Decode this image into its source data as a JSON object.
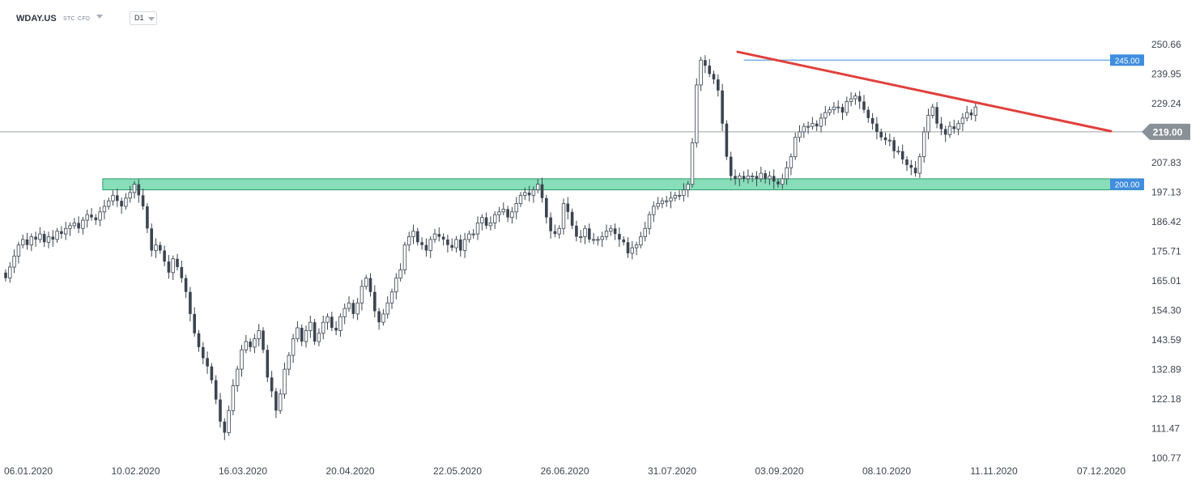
{
  "toolbar": {
    "symbol": "WDAY.US",
    "tag_stc": "STC",
    "tag_cfd": "CFD",
    "timeframe": "D1"
  },
  "colors": {
    "candle": "#3b4450",
    "trendline": "#e0403c",
    "resistance_line": "#3f8de0",
    "support_zone": "#5fd3a1",
    "support_zone_border": "#2a9d68",
    "price_line": "#9aa1a8",
    "price_badge": "#8a9097"
  },
  "chart_data": {
    "type": "candlestick",
    "ylim": [
      100.77,
      250.66
    ],
    "y_ticks": [
      "250.66",
      "239.95",
      "229.24",
      "219.00",
      "207.83",
      "197.13",
      "186.42",
      "175.71",
      "165.01",
      "154.30",
      "143.59",
      "132.89",
      "122.18",
      "111.47",
      "100.77"
    ],
    "x_labels": [
      "06.01.2020",
      "10.02.2020",
      "16.03.2020",
      "20.04.2020",
      "22.05.2020",
      "26.06.2020",
      "31.07.2020",
      "03.09.2020",
      "08.10.2020",
      "11.11.2020",
      "07.12.2020"
    ],
    "x_label_index": [
      0,
      25,
      50,
      75,
      100,
      125,
      150,
      175,
      200,
      225,
      250
    ],
    "current_price": 219.0,
    "current_price_label": "219.00",
    "resistance_label": "245.00",
    "support_label": "200.00",
    "overlays": {
      "resistance": {
        "index": [
          172,
          252
        ],
        "value": 245.0
      },
      "support_zone": {
        "index": [
          23,
          261
        ],
        "range": [
          198.0,
          202.0
        ]
      },
      "trendline": {
        "from": {
          "index": 170,
          "value": 248.0
        },
        "to": {
          "index": 252,
          "value": 221.0
        }
      }
    },
    "close": [
      166,
      170,
      174,
      178,
      180,
      178,
      181,
      180,
      182,
      179,
      181,
      180,
      183,
      182,
      184,
      185,
      186,
      184,
      187,
      189,
      188,
      187,
      190,
      192,
      194,
      196,
      194,
      192,
      195,
      197,
      200,
      196,
      192,
      184,
      176,
      178,
      176,
      172,
      168,
      173,
      170,
      166,
      161,
      153,
      146,
      141,
      137,
      134,
      129,
      122,
      114,
      110,
      118,
      127,
      133,
      140,
      143,
      141,
      144,
      147,
      140,
      130,
      125,
      118,
      124,
      133,
      138,
      144,
      148,
      143,
      147,
      150,
      143,
      146,
      150,
      152,
      148,
      147,
      152,
      155,
      157,
      153,
      157,
      163,
      166,
      161,
      154,
      150,
      153,
      157,
      161,
      166,
      169,
      178,
      181,
      183,
      179,
      178,
      176,
      180,
      182,
      181,
      180,
      178,
      177,
      180,
      176,
      180,
      182,
      182,
      186,
      188,
      185,
      186,
      189,
      190,
      191,
      188,
      190,
      193,
      196,
      197,
      196,
      198,
      200,
      195,
      188,
      183,
      182,
      184,
      193,
      190,
      185,
      181,
      181,
      184,
      180,
      180,
      180,
      181,
      183,
      184,
      182,
      180,
      179,
      175,
      177,
      178,
      181,
      184,
      189,
      192,
      193,
      194,
      194,
      195,
      196,
      196,
      198,
      200,
      215,
      236,
      245,
      243,
      240,
      238,
      234,
      222,
      210,
      203,
      202,
      203,
      202,
      203,
      203,
      202,
      204,
      202,
      203,
      201,
      200,
      202,
      206,
      210,
      217,
      219,
      221,
      221,
      222,
      221,
      224,
      226,
      227,
      228,
      228,
      226,
      230,
      231,
      232,
      230,
      227,
      224,
      222,
      219,
      217,
      216,
      216,
      212,
      212,
      209,
      207,
      206,
      204,
      210,
      219,
      225,
      228,
      222,
      220,
      218,
      221,
      220,
      222,
      224,
      226,
      225,
      228
    ],
    "open": [
      168,
      166,
      170,
      174,
      178,
      180,
      178,
      181,
      180,
      182,
      179,
      181,
      180,
      183,
      182,
      184,
      185,
      186,
      184,
      187,
      189,
      188,
      187,
      190,
      192,
      194,
      196,
      194,
      192,
      195,
      197,
      200,
      196,
      192,
      184,
      176,
      178,
      176,
      172,
      168,
      173,
      170,
      166,
      161,
      153,
      146,
      141,
      137,
      134,
      129,
      122,
      114,
      110,
      118,
      127,
      133,
      140,
      143,
      141,
      144,
      147,
      140,
      130,
      125,
      118,
      124,
      133,
      138,
      144,
      148,
      143,
      147,
      150,
      143,
      146,
      150,
      152,
      148,
      147,
      152,
      155,
      157,
      153,
      157,
      163,
      166,
      161,
      154,
      150,
      153,
      157,
      161,
      166,
      169,
      178,
      181,
      183,
      179,
      178,
      176,
      180,
      182,
      181,
      180,
      178,
      177,
      180,
      176,
      180,
      182,
      182,
      186,
      188,
      185,
      186,
      189,
      190,
      191,
      188,
      190,
      193,
      196,
      197,
      196,
      198,
      200,
      195,
      188,
      183,
      182,
      184,
      193,
      190,
      185,
      181,
      181,
      184,
      180,
      180,
      180,
      181,
      183,
      184,
      182,
      180,
      179,
      175,
      177,
      178,
      181,
      184,
      189,
      192,
      193,
      194,
      194,
      195,
      196,
      196,
      198,
      200,
      215,
      236,
      245,
      243,
      240,
      238,
      234,
      222,
      210,
      203,
      202,
      203,
      202,
      203,
      203,
      202,
      204,
      202,
      203,
      201,
      200,
      202,
      206,
      210,
      217,
      219,
      221,
      221,
      222,
      221,
      224,
      226,
      227,
      228,
      228,
      226,
      230,
      231,
      232,
      230,
      227,
      224,
      222,
      219,
      217,
      216,
      216,
      212,
      212,
      209,
      207,
      206,
      204,
      210,
      219,
      225,
      228,
      222,
      220,
      218,
      221,
      220,
      222,
      224,
      226,
      225
    ]
  }
}
